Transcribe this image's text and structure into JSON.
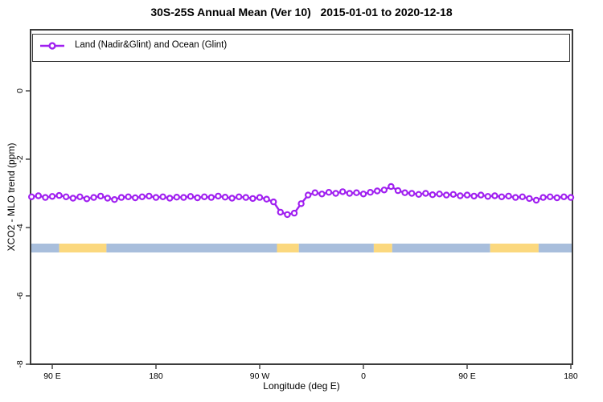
{
  "title": "30S-25S Annual Mean (Ver 10)   2015-01-01 to 2020-12-18",
  "legend": {
    "label": "Land (Nadir&Glint) and Ocean (Glint)",
    "marker_color": "#A020F0"
  },
  "colors": {
    "series": "#A020F0",
    "land_band": "#FBD87E",
    "ocean_band": "#A8BEDC",
    "axis": "#3c3c3c",
    "text": "#000000",
    "background": "#ffffff"
  },
  "axes": {
    "x": {
      "label": "Longitude (deg E)",
      "ticks": [
        90,
        180,
        270,
        360,
        450,
        540
      ],
      "tick_labels": [
        "90 E",
        "180",
        "90 W",
        "0",
        "90 E",
        "180"
      ]
    },
    "y": {
      "label": "XCO2 - MLO trend (ppm)",
      "ticks": [
        0,
        -2,
        -4,
        -6,
        -8
      ],
      "tick_labels": [
        "0",
        "-2",
        "-4",
        "-6",
        "-8"
      ]
    }
  },
  "chart_data": {
    "type": "line",
    "title": "30S-25S Annual Mean (Ver 10)   2015-01-01 to 2020-12-18",
    "xlabel": "Longitude (deg E)",
    "ylabel": "XCO2 - MLO trend (ppm)",
    "x_axis_note": "longitude wraps eastward: 90E -> 180 -> 90W -> 0 -> 90E -> 180, plotted as 90..540 deg",
    "xlim": [
      71,
      541.5
    ],
    "ylim": [
      -8.1,
      1.8
    ],
    "grid": false,
    "legend_position": "top-left, full-width framed box",
    "series": [
      {
        "name": "Land (Nadir&Glint) and Ocean (Glint)",
        "color": "#A020F0",
        "marker": "open-circle",
        "x": [
          72,
          78,
          84,
          90,
          96,
          102,
          108,
          114,
          120,
          126,
          132,
          138,
          144,
          150,
          156,
          162,
          168,
          174,
          180,
          186,
          192,
          198,
          204,
          210,
          216,
          222,
          228,
          234,
          240,
          246,
          252,
          258,
          264,
          270,
          276,
          282,
          288,
          294,
          300,
          306,
          312,
          318,
          324,
          330,
          336,
          342,
          348,
          354,
          360,
          366,
          372,
          378,
          384,
          390,
          396,
          402,
          408,
          414,
          420,
          426,
          432,
          438,
          444,
          450,
          456,
          462,
          468,
          474,
          480,
          486,
          492,
          498,
          504,
          510,
          516,
          522,
          528,
          534,
          540
        ],
        "y": [
          -3.1,
          -3.07,
          -3.12,
          -3.09,
          -3.06,
          -3.1,
          -3.14,
          -3.1,
          -3.16,
          -3.12,
          -3.08,
          -3.14,
          -3.18,
          -3.12,
          -3.1,
          -3.13,
          -3.1,
          -3.08,
          -3.12,
          -3.1,
          -3.14,
          -3.11,
          -3.12,
          -3.09,
          -3.13,
          -3.1,
          -3.12,
          -3.08,
          -3.11,
          -3.14,
          -3.1,
          -3.12,
          -3.15,
          -3.12,
          -3.17,
          -3.25,
          -3.55,
          -3.62,
          -3.58,
          -3.3,
          -3.05,
          -2.98,
          -3.02,
          -2.97,
          -3.0,
          -2.95,
          -3.0,
          -2.98,
          -3.02,
          -2.97,
          -2.93,
          -2.9,
          -2.8,
          -2.92,
          -2.98,
          -3.0,
          -3.03,
          -3.0,
          -3.04,
          -3.02,
          -3.05,
          -3.03,
          -3.07,
          -3.05,
          -3.08,
          -3.05,
          -3.09,
          -3.07,
          -3.1,
          -3.08,
          -3.12,
          -3.1,
          -3.15,
          -3.2,
          -3.12,
          -3.1,
          -3.13,
          -3.1,
          -3.12
        ]
      }
    ],
    "surface_band": {
      "description": "horizontal strip near y=-4.6 showing surface type vs longitude",
      "y_range": [
        -4.47,
        -4.73
      ],
      "colors": {
        "land": "#FBD87E",
        "ocean": "#A8BEDC"
      },
      "segments": [
        {
          "surface": "ocean",
          "from": 71,
          "to": 96
        },
        {
          "surface": "land",
          "from": 96,
          "to": 137
        },
        {
          "surface": "ocean",
          "from": 137,
          "to": 285
        },
        {
          "surface": "land",
          "from": 285,
          "to": 304
        },
        {
          "surface": "ocean",
          "from": 304,
          "to": 369
        },
        {
          "surface": "land",
          "from": 369,
          "to": 385
        },
        {
          "surface": "ocean",
          "from": 385,
          "to": 470
        },
        {
          "surface": "land",
          "from": 470,
          "to": 512
        },
        {
          "surface": "ocean",
          "from": 512,
          "to": 541.5
        }
      ]
    }
  }
}
